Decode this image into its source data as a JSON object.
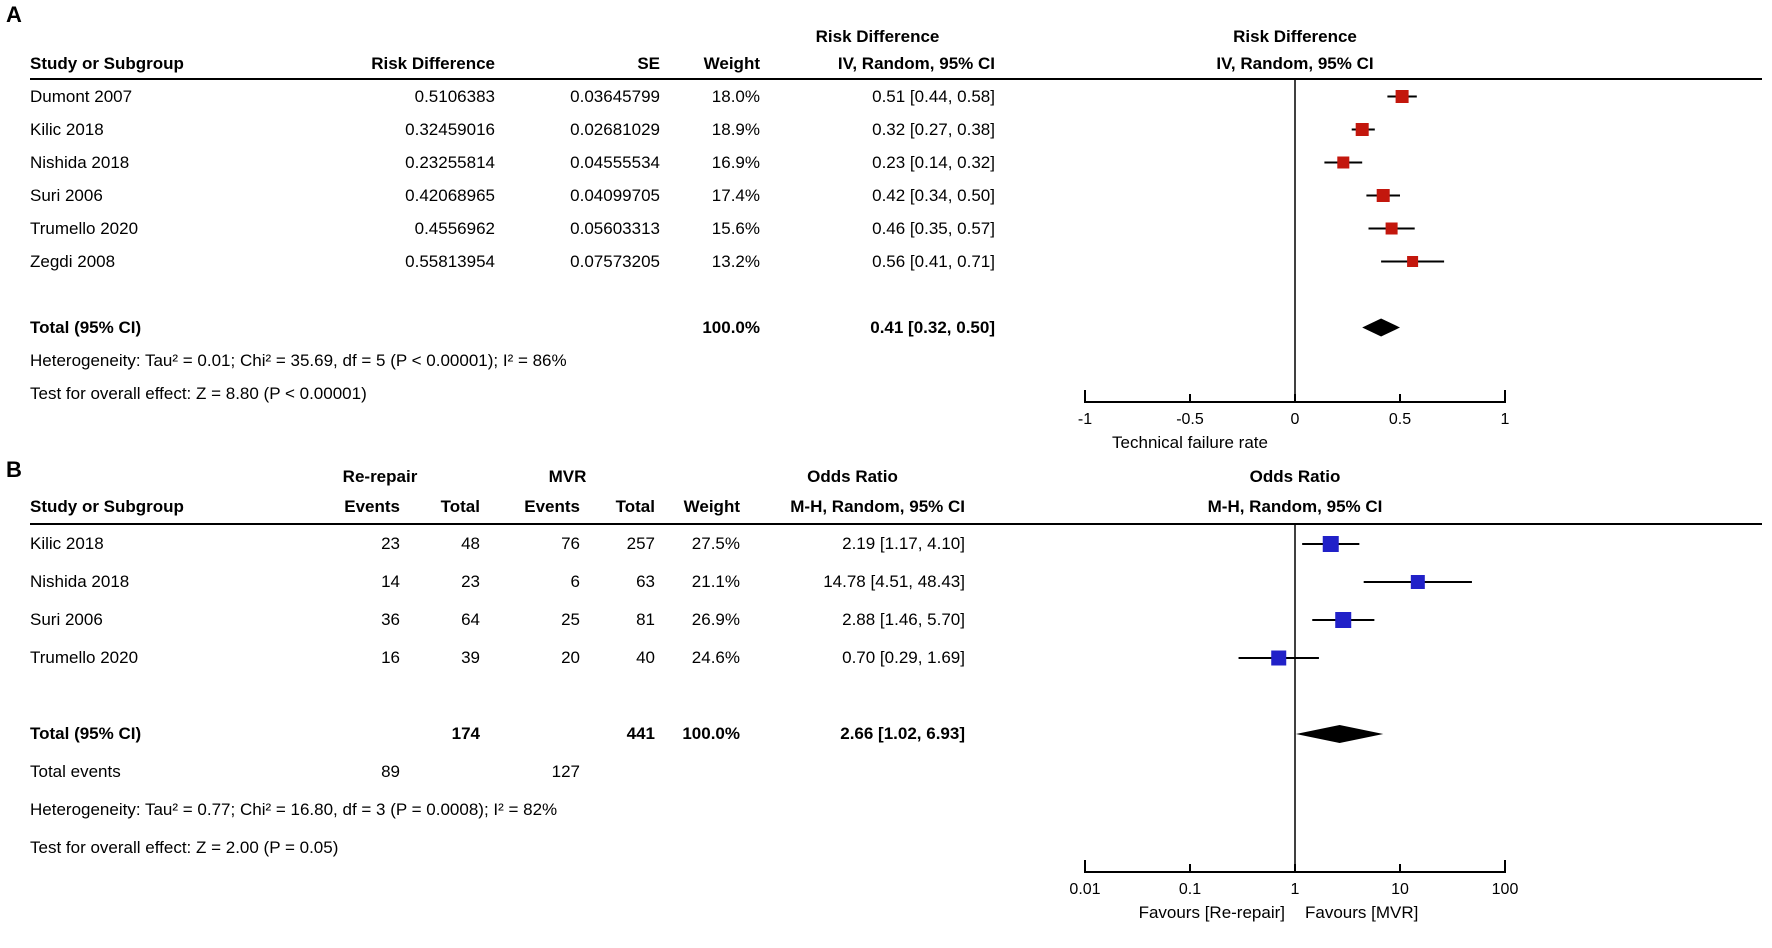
{
  "colors": {
    "background": "#ffffff",
    "text": "#000000",
    "panel_a_marker": "#c3170d",
    "panel_b_marker": "#2121c8",
    "diamond": "#000000",
    "axis": "#000000"
  },
  "chart_data": [
    {
      "type": "scatter",
      "subtype": "forest-plot-meta-analysis",
      "panel_label": "A",
      "effect_measure": "Risk Difference",
      "column_headers": {
        "study": "Study or Subgroup",
        "effect": "Risk Difference",
        "se": "SE",
        "weight": "Weight",
        "ci": "IV, Random, 95% CI",
        "ci_top": "Risk Difference"
      },
      "plot_headers": {
        "top": "Risk Difference",
        "bottom": "IV, Random, 95% CI"
      },
      "x_scale": "linear",
      "xlim": [
        -1,
        1
      ],
      "x_ticks": [
        "-1",
        "-0.5",
        "0",
        "0.5",
        "1"
      ],
      "x_tick_values": [
        -1,
        -0.5,
        0,
        0.5,
        1
      ],
      "xlabel": "Technical failure rate",
      "studies": [
        {
          "name": "Dumont 2007",
          "effect_text": "0.5106383",
          "se_text": "0.03645799",
          "weight_text": "18.0%",
          "ci_text": "0.51 [0.44, 0.58]",
          "estimate": 0.51,
          "ci_low": 0.44,
          "ci_high": 0.58,
          "weight_pct": 18.0
        },
        {
          "name": "Kilic 2018",
          "effect_text": "0.32459016",
          "se_text": "0.02681029",
          "weight_text": "18.9%",
          "ci_text": "0.32 [0.27, 0.38]",
          "estimate": 0.32,
          "ci_low": 0.27,
          "ci_high": 0.38,
          "weight_pct": 18.9
        },
        {
          "name": "Nishida 2018",
          "effect_text": "0.23255814",
          "se_text": "0.04555534",
          "weight_text": "16.9%",
          "ci_text": "0.23 [0.14, 0.32]",
          "estimate": 0.23,
          "ci_low": 0.14,
          "ci_high": 0.32,
          "weight_pct": 16.9
        },
        {
          "name": "Suri 2006",
          "effect_text": "0.42068965",
          "se_text": "0.04099705",
          "weight_text": "17.4%",
          "ci_text": "0.42 [0.34, 0.50]",
          "estimate": 0.42,
          "ci_low": 0.34,
          "ci_high": 0.5,
          "weight_pct": 17.4
        },
        {
          "name": "Trumello 2020",
          "effect_text": "0.4556962",
          "se_text": "0.05603313",
          "weight_text": "15.6%",
          "ci_text": "0.46 [0.35, 0.57]",
          "estimate": 0.46,
          "ci_low": 0.35,
          "ci_high": 0.57,
          "weight_pct": 15.6
        },
        {
          "name": "Zegdi 2008",
          "effect_text": "0.55813954",
          "se_text": "0.07573205",
          "weight_text": "13.2%",
          "ci_text": "0.56 [0.41, 0.71]",
          "estimate": 0.56,
          "ci_low": 0.41,
          "ci_high": 0.71,
          "weight_pct": 13.2
        }
      ],
      "total": {
        "label": "Total (95% CI)",
        "weight_text": "100.0%",
        "ci_text": "0.41 [0.32, 0.50]",
        "estimate": 0.41,
        "ci_low": 0.32,
        "ci_high": 0.5
      },
      "heterogeneity": "Heterogeneity: Tau² = 0.01; Chi² = 35.69, df = 5 (P < 0.00001); I² = 86%",
      "overall_effect": "Test for overall effect: Z = 8.80 (P < 0.00001)"
    },
    {
      "type": "scatter",
      "subtype": "forest-plot-meta-analysis",
      "panel_label": "B",
      "effect_measure": "Odds Ratio",
      "group_headers": {
        "left": "Re-repair",
        "right": "MVR"
      },
      "column_headers": {
        "study": "Study or Subgroup",
        "events": "Events",
        "total": "Total",
        "events2": "Events",
        "total2": "Total",
        "weight": "Weight",
        "ci": "M-H, Random, 95% CI",
        "ci_top": "Odds Ratio"
      },
      "plot_headers": {
        "top": "Odds Ratio",
        "bottom": "M-H, Random, 95% CI"
      },
      "x_scale": "log10",
      "xlim": [
        0.01,
        100
      ],
      "x_ticks": [
        "0.01",
        "0.1",
        "1",
        "10",
        "100"
      ],
      "x_tick_values": [
        0.01,
        0.1,
        1,
        10,
        100
      ],
      "xlabel_left": "Favours [Re-repair]",
      "xlabel_right": "Favours [MVR]",
      "studies": [
        {
          "name": "Kilic 2018",
          "e1": "23",
          "t1": "48",
          "e2": "76",
          "t2": "257",
          "weight_text": "27.5%",
          "ci_text": "2.19 [1.17, 4.10]",
          "estimate": 2.19,
          "ci_low": 1.17,
          "ci_high": 4.1,
          "weight_pct": 27.5
        },
        {
          "name": "Nishida 2018",
          "e1": "14",
          "t1": "23",
          "e2": "6",
          "t2": "63",
          "weight_text": "21.1%",
          "ci_text": "14.78 [4.51, 48.43]",
          "estimate": 14.78,
          "ci_low": 4.51,
          "ci_high": 48.43,
          "weight_pct": 21.1
        },
        {
          "name": "Suri 2006",
          "e1": "36",
          "t1": "64",
          "e2": "25",
          "t2": "81",
          "weight_text": "26.9%",
          "ci_text": "2.88 [1.46, 5.70]",
          "estimate": 2.88,
          "ci_low": 1.46,
          "ci_high": 5.7,
          "weight_pct": 26.9
        },
        {
          "name": "Trumello 2020",
          "e1": "16",
          "t1": "39",
          "e2": "20",
          "t2": "40",
          "weight_text": "24.6%",
          "ci_text": "0.70 [0.29, 1.69]",
          "estimate": 0.7,
          "ci_low": 0.29,
          "ci_high": 1.69,
          "weight_pct": 24.6
        }
      ],
      "total": {
        "label": "Total (95% CI)",
        "t1": "174",
        "t2": "441",
        "weight_text": "100.0%",
        "ci_text": "2.66 [1.02, 6.93]",
        "estimate": 2.66,
        "ci_low": 1.02,
        "ci_high": 6.93
      },
      "total_events": {
        "label": "Total events",
        "e1": "89",
        "e2": "127"
      },
      "heterogeneity": "Heterogeneity: Tau² = 0.77; Chi² = 16.80, df = 3 (P = 0.0008); I² = 82%",
      "overall_effect": "Test for overall effect: Z = 2.00 (P = 0.05)"
    }
  ]
}
